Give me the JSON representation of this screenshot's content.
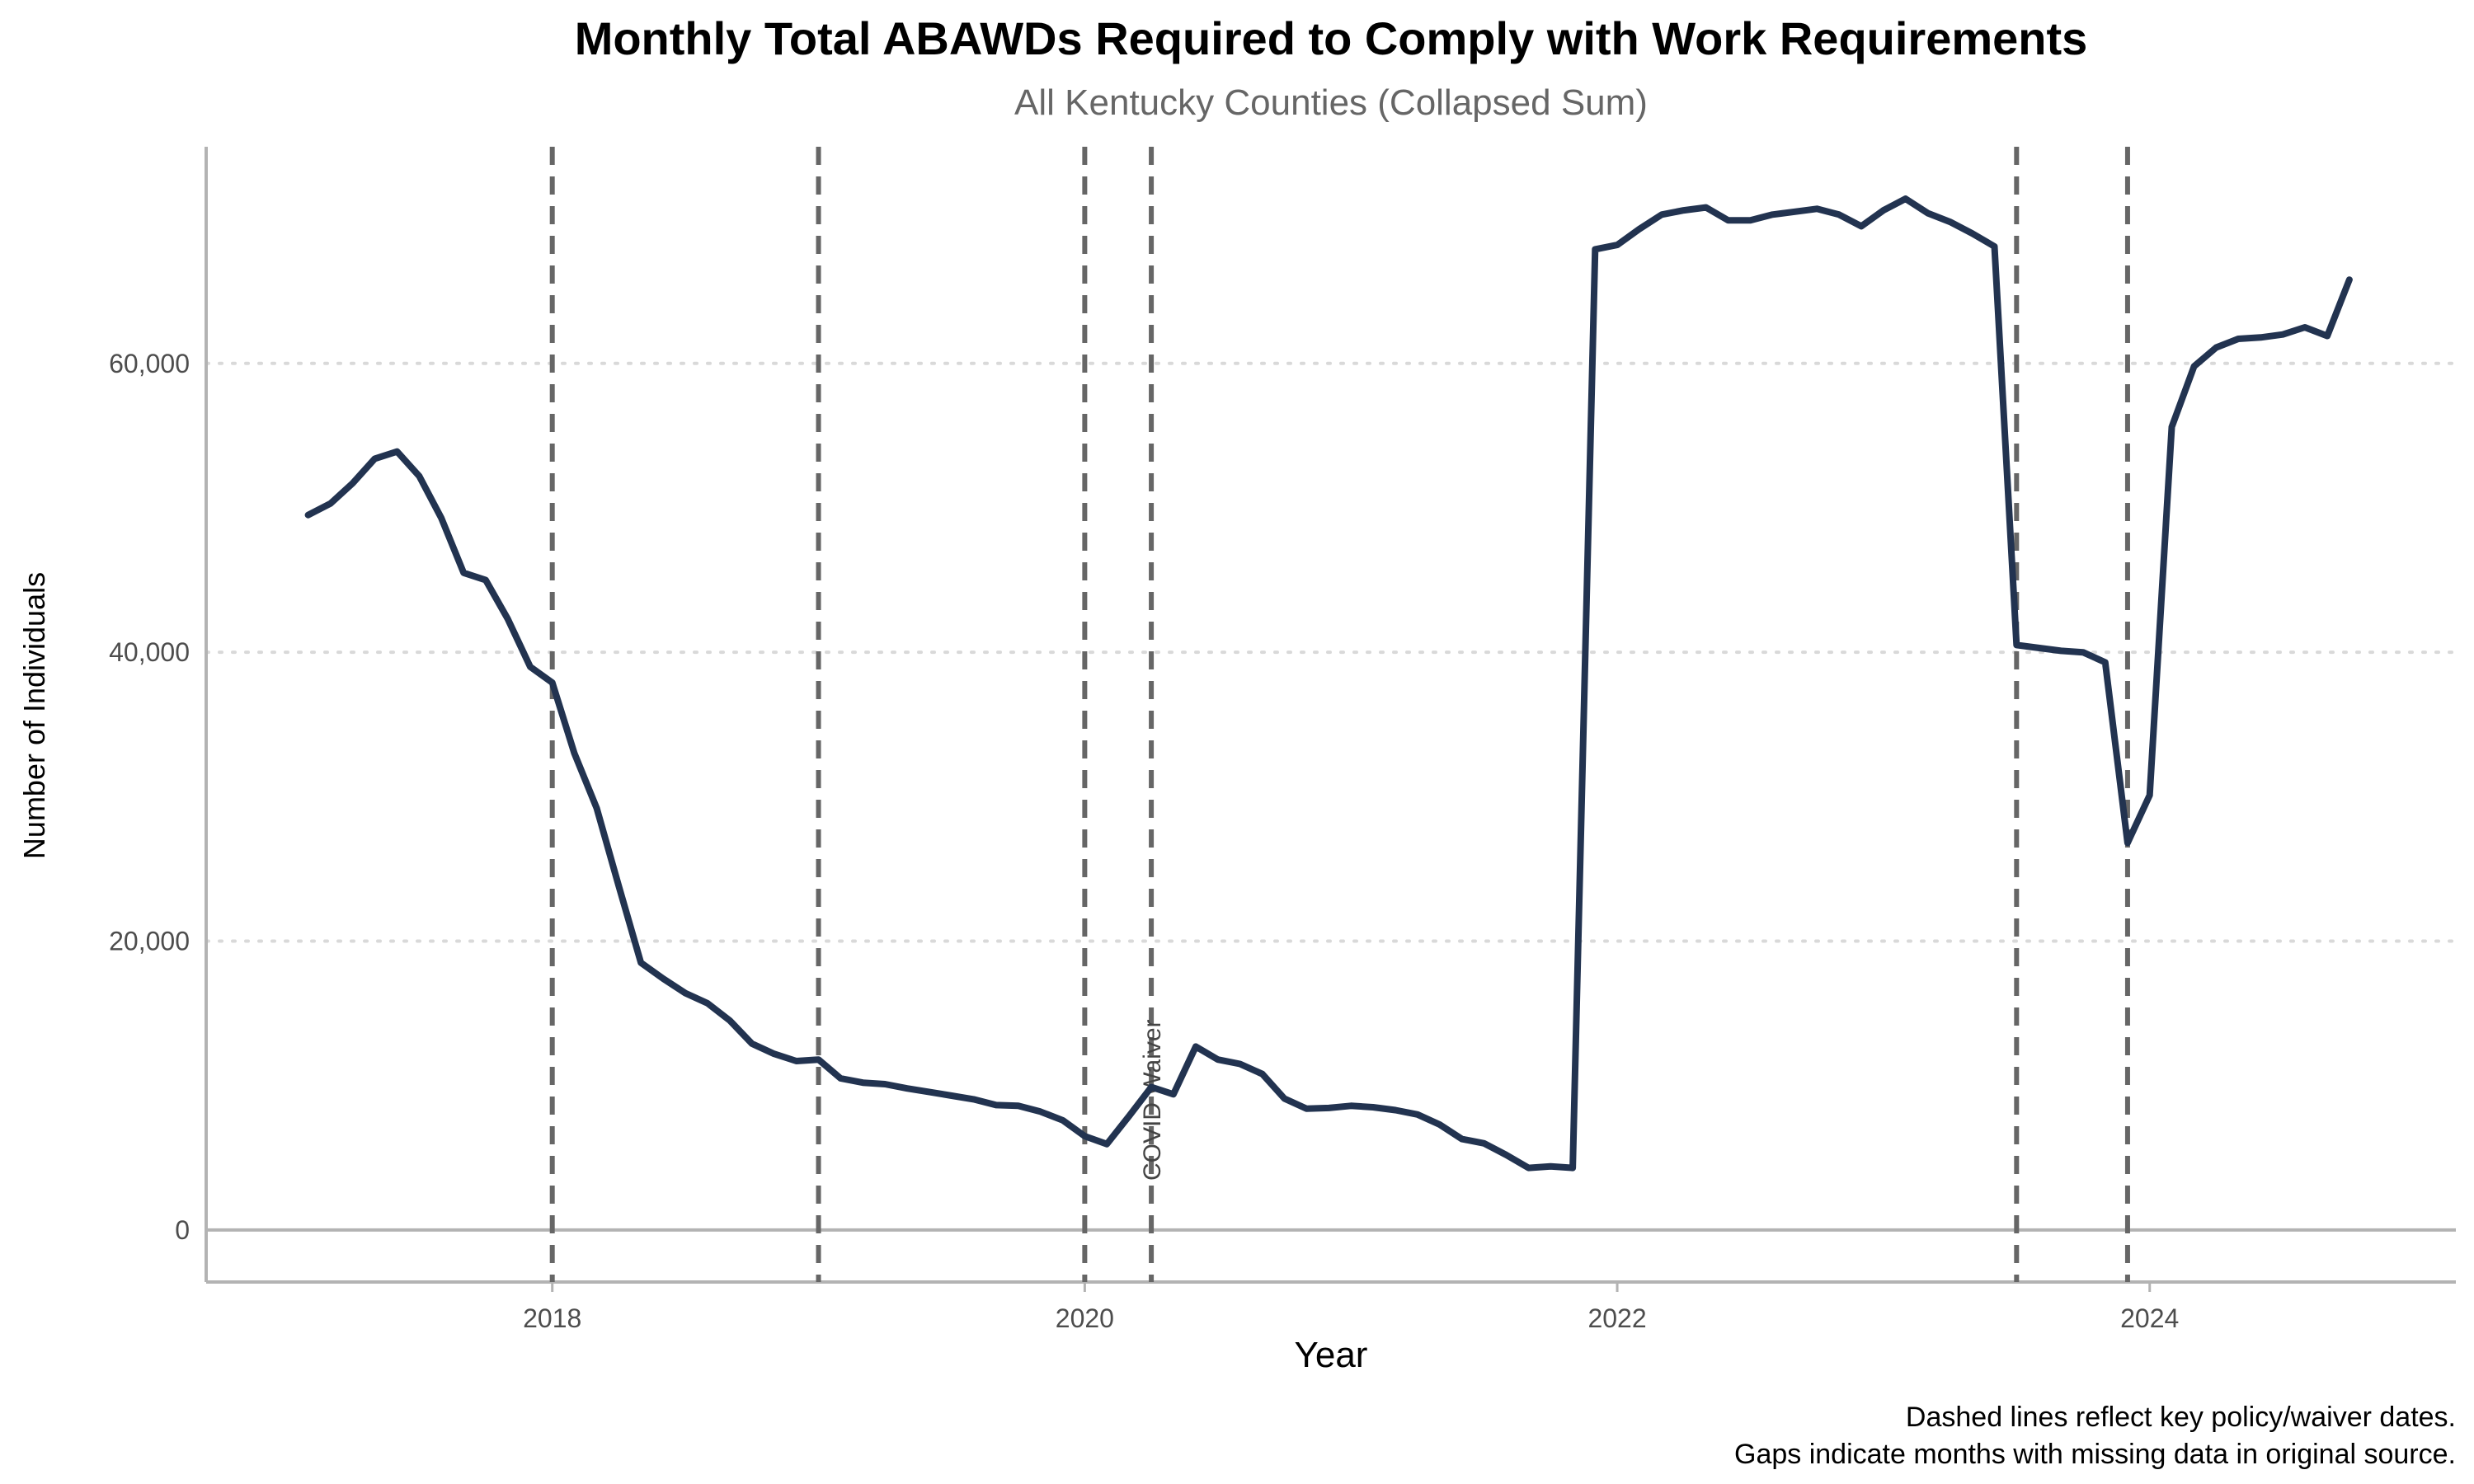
{
  "chart_data": {
    "type": "line",
    "title": "Monthly Total ABAWDs Required to Comply with Work Requirements",
    "subtitle": "All Kentucky Counties (Collapsed Sum)",
    "xlabel": "Year",
    "ylabel": "Number of Individuals",
    "xlim": [
      2016.7,
      2025.15
    ],
    "ylim": [
      -3600,
      75000
    ],
    "x_ticks": [
      2018,
      2020,
      2022,
      2024
    ],
    "x_tick_labels": [
      "2018",
      "2020",
      "2022",
      "2024"
    ],
    "y_ticks": [
      0,
      20000,
      40000,
      60000
    ],
    "y_tick_labels": [
      "0",
      "20,000",
      "40,000",
      "60,000"
    ],
    "grid": "horizontal dotted",
    "line_color": "#223350",
    "vline_color": "#666666",
    "vlines": [
      2018.0,
      2019.0,
      2020.0,
      2020.25,
      2023.5,
      2023.917
    ],
    "annotation": {
      "text": "COVID Waiver",
      "x": 2020.25,
      "y": 9000
    },
    "caption": [
      "Dashed lines reflect key policy/waiver dates.",
      "Gaps indicate months with missing data in original source."
    ],
    "series": [
      {
        "x": [
          2017.083,
          2017.167,
          2017.25,
          2017.333,
          2017.417,
          2017.5,
          2017.583,
          2017.667,
          2017.75,
          2017.833,
          2017.917,
          2018.0,
          2018.083,
          2018.167,
          2018.25,
          2018.333,
          2018.417,
          2018.5,
          2018.583,
          2018.667,
          2018.75,
          2018.833,
          2018.917,
          2019.0,
          2019.083,
          2019.167,
          2019.25,
          2019.333,
          2019.417,
          2019.5,
          2019.583,
          2019.667,
          2019.75,
          2019.833,
          2019.917,
          2020.0,
          2020.083,
          2020.167,
          2020.25,
          2020.333,
          2020.417,
          2020.5,
          2020.583,
          2020.667,
          2020.75,
          2020.833,
          2020.917,
          2021.0,
          2021.083,
          2021.167,
          2021.25,
          2021.333,
          2021.417,
          2021.5,
          2021.583,
          2021.667,
          2021.75,
          2021.833,
          2021.917,
          2022.0,
          2022.083,
          2022.167,
          2022.25,
          2022.333,
          2022.417,
          2022.5,
          2022.583,
          2022.667,
          2022.75,
          2022.833,
          2022.917,
          2023.0,
          2023.083,
          2023.167,
          2023.25,
          2023.333,
          2023.417,
          2023.5,
          2023.583,
          2023.667,
          2023.75,
          2023.833,
          2023.917,
          2024.0,
          2024.083,
          2024.167,
          2024.25,
          2024.333,
          2024.417,
          2024.5,
          2024.583,
          2024.667,
          2024.75
        ],
        "values": [
          49500,
          50300,
          51700,
          53400,
          53900,
          52200,
          49300,
          45500,
          45000,
          42300,
          39000,
          37900,
          33000,
          29200,
          23800,
          18500,
          17400,
          16400,
          15700,
          14500,
          12900,
          12200,
          11700,
          11800,
          10500,
          10200,
          10100,
          9800,
          9550,
          9300,
          9050,
          8650,
          8600,
          8200,
          7600,
          6500,
          5950,
          7900,
          9900,
          9400,
          12700,
          11800,
          11500,
          10800,
          9100,
          8400,
          8450,
          8600,
          8500,
          8300,
          8000,
          7300,
          6300,
          6000,
          5200,
          4300,
          4400,
          4300,
          67900,
          68200,
          69300,
          70300,
          70600,
          70800,
          69900,
          69900,
          70300,
          70500,
          70700,
          70300,
          69500,
          70600,
          71400,
          70400,
          69800,
          69000,
          68100,
          40500,
          40300,
          40100,
          40000,
          39300,
          26800,
          30100,
          55600,
          59800,
          61100,
          61700,
          61800,
          62000,
          62500,
          61900,
          65800
        ]
      }
    ]
  }
}
